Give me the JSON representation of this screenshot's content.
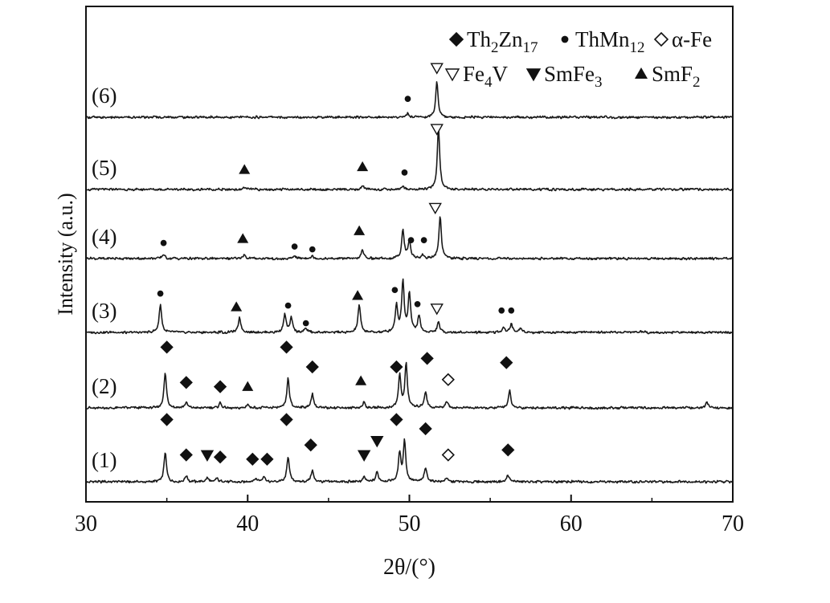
{
  "chart_data": {
    "type": "line",
    "title": "",
    "xlabel": "2θ/(°)",
    "ylabel": "Intensity (a.u.)",
    "xlim": [
      30,
      70
    ],
    "xticks": [
      30,
      40,
      50,
      60,
      70
    ],
    "grid": false,
    "legend": {
      "placement": "top-right",
      "entries": [
        {
          "symbol": "diamond-filled",
          "label": "Th2Zn17"
        },
        {
          "symbol": "circle-filled",
          "label": "ThMn12"
        },
        {
          "symbol": "diamond-open",
          "label": "α-Fe"
        },
        {
          "symbol": "triangle-down-open",
          "label": "Fe4V"
        },
        {
          "symbol": "triangle-down-filled",
          "label": "SmFe3"
        },
        {
          "symbol": "triangle-up-filled",
          "label": "SmF2"
        }
      ]
    },
    "series": [
      {
        "name": "(1)",
        "peaks": [
          {
            "x": 34.9,
            "h": 0.42
          },
          {
            "x": 36.2,
            "h": 0.08
          },
          {
            "x": 37.5,
            "h": 0.06
          },
          {
            "x": 38.1,
            "h": 0.05
          },
          {
            "x": 40.5,
            "h": 0.05
          },
          {
            "x": 41.0,
            "h": 0.07
          },
          {
            "x": 42.5,
            "h": 0.36
          },
          {
            "x": 44.0,
            "h": 0.16
          },
          {
            "x": 47.2,
            "h": 0.06
          },
          {
            "x": 48.0,
            "h": 0.14
          },
          {
            "x": 49.4,
            "h": 0.4
          },
          {
            "x": 49.7,
            "h": 0.58
          },
          {
            "x": 51.0,
            "h": 0.2
          },
          {
            "x": 52.3,
            "h": 0.06
          },
          {
            "x": 56.1,
            "h": 0.1
          }
        ],
        "markers": [
          {
            "x": 35.0,
            "sym": "diamond-filled",
            "h": 0.88
          },
          {
            "x": 36.2,
            "sym": "diamond-filled",
            "h": 0.38
          },
          {
            "x": 37.5,
            "sym": "triangle-down-filled",
            "h": 0.38
          },
          {
            "x": 38.3,
            "sym": "diamond-filled",
            "h": 0.35
          },
          {
            "x": 40.3,
            "sym": "diamond-filled",
            "h": 0.32
          },
          {
            "x": 41.2,
            "sym": "diamond-filled",
            "h": 0.32
          },
          {
            "x": 42.4,
            "sym": "diamond-filled",
            "h": 0.88
          },
          {
            "x": 43.9,
            "sym": "diamond-filled",
            "h": 0.52
          },
          {
            "x": 47.2,
            "sym": "triangle-down-filled",
            "h": 0.38
          },
          {
            "x": 48.0,
            "sym": "triangle-down-filled",
            "h": 0.58
          },
          {
            "x": 49.2,
            "sym": "diamond-filled",
            "h": 0.88
          },
          {
            "x": 51.0,
            "sym": "diamond-filled",
            "h": 0.75
          },
          {
            "x": 52.4,
            "sym": "diamond-open",
            "h": 0.38
          },
          {
            "x": 56.1,
            "sym": "diamond-filled",
            "h": 0.45
          }
        ]
      },
      {
        "name": "(2)",
        "peaks": [
          {
            "x": 34.9,
            "h": 0.5
          },
          {
            "x": 36.2,
            "h": 0.07
          },
          {
            "x": 38.3,
            "h": 0.07
          },
          {
            "x": 40.0,
            "h": 0.05
          },
          {
            "x": 42.5,
            "h": 0.42
          },
          {
            "x": 44.0,
            "h": 0.2
          },
          {
            "x": 47.2,
            "h": 0.08
          },
          {
            "x": 49.4,
            "h": 0.46
          },
          {
            "x": 49.8,
            "h": 0.62
          },
          {
            "x": 51.0,
            "h": 0.24
          },
          {
            "x": 52.3,
            "h": 0.1
          },
          {
            "x": 56.2,
            "h": 0.24
          },
          {
            "x": 68.4,
            "h": 0.07
          }
        ],
        "markers": [
          {
            "x": 35.0,
            "sym": "diamond-filled",
            "h": 0.86
          },
          {
            "x": 36.2,
            "sym": "diamond-filled",
            "h": 0.36
          },
          {
            "x": 38.3,
            "sym": "diamond-filled",
            "h": 0.3
          },
          {
            "x": 40.0,
            "sym": "triangle-up-filled",
            "h": 0.3
          },
          {
            "x": 42.4,
            "sym": "diamond-filled",
            "h": 0.86
          },
          {
            "x": 44.0,
            "sym": "diamond-filled",
            "h": 0.58
          },
          {
            "x": 47.0,
            "sym": "triangle-up-filled",
            "h": 0.38
          },
          {
            "x": 49.2,
            "sym": "diamond-filled",
            "h": 0.58
          },
          {
            "x": 51.1,
            "sym": "diamond-filled",
            "h": 0.7
          },
          {
            "x": 52.4,
            "sym": "diamond-open",
            "h": 0.4
          },
          {
            "x": 56.0,
            "sym": "diamond-filled",
            "h": 0.64
          }
        ]
      },
      {
        "name": "(3)",
        "peaks": [
          {
            "x": 34.6,
            "h": 0.4
          },
          {
            "x": 39.5,
            "h": 0.22
          },
          {
            "x": 42.3,
            "h": 0.26
          },
          {
            "x": 42.7,
            "h": 0.2
          },
          {
            "x": 43.6,
            "h": 0.06
          },
          {
            "x": 46.9,
            "h": 0.4
          },
          {
            "x": 49.2,
            "h": 0.38
          },
          {
            "x": 49.6,
            "h": 0.72
          },
          {
            "x": 50.0,
            "h": 0.55
          },
          {
            "x": 50.6,
            "h": 0.24
          },
          {
            "x": 51.8,
            "h": 0.14
          },
          {
            "x": 55.8,
            "h": 0.08
          },
          {
            "x": 56.3,
            "h": 0.12
          },
          {
            "x": 56.9,
            "h": 0.06
          },
          {
            "x": 64.3,
            "h": 0.02
          }
        ],
        "markers": [
          {
            "x": 34.6,
            "sym": "circle-filled",
            "h": 0.55
          },
          {
            "x": 39.3,
            "sym": "triangle-up-filled",
            "h": 0.36
          },
          {
            "x": 42.5,
            "sym": "circle-filled",
            "h": 0.38
          },
          {
            "x": 43.6,
            "sym": "circle-filled",
            "h": 0.13
          },
          {
            "x": 46.8,
            "sym": "triangle-up-filled",
            "h": 0.52
          },
          {
            "x": 49.1,
            "sym": "circle-filled",
            "h": 0.6
          },
          {
            "x": 50.5,
            "sym": "circle-filled",
            "h": 0.4
          },
          {
            "x": 51.7,
            "sym": "triangle-down-open",
            "h": 0.34
          },
          {
            "x": 55.7,
            "sym": "circle-filled",
            "h": 0.31
          },
          {
            "x": 56.3,
            "sym": "circle-filled",
            "h": 0.31
          }
        ]
      },
      {
        "name": "(4)",
        "peaks": [
          {
            "x": 34.8,
            "h": 0.06
          },
          {
            "x": 39.8,
            "h": 0.06
          },
          {
            "x": 42.9,
            "h": 0.04
          },
          {
            "x": 44.0,
            "h": 0.03
          },
          {
            "x": 47.1,
            "h": 0.12
          },
          {
            "x": 49.6,
            "h": 0.4
          },
          {
            "x": 50.0,
            "h": 0.26
          },
          {
            "x": 50.8,
            "h": 0.05
          },
          {
            "x": 51.9,
            "h": 0.6
          }
        ],
        "markers": [
          {
            "x": 34.8,
            "sym": "circle-filled",
            "h": 0.22
          },
          {
            "x": 39.7,
            "sym": "triangle-up-filled",
            "h": 0.28
          },
          {
            "x": 42.9,
            "sym": "circle-filled",
            "h": 0.17
          },
          {
            "x": 44.0,
            "sym": "circle-filled",
            "h": 0.13
          },
          {
            "x": 46.9,
            "sym": "triangle-up-filled",
            "h": 0.39
          },
          {
            "x": 50.1,
            "sym": "circle-filled",
            "h": 0.26
          },
          {
            "x": 50.9,
            "sym": "circle-filled",
            "h": 0.26
          },
          {
            "x": 51.6,
            "sym": "triangle-down-open",
            "h": 0.72
          }
        ]
      },
      {
        "name": "(5)",
        "peaks": [
          {
            "x": 39.8,
            "h": 0.03
          },
          {
            "x": 47.1,
            "h": 0.05
          },
          {
            "x": 49.6,
            "h": 0.04
          },
          {
            "x": 51.8,
            "h": 0.88
          }
        ],
        "markers": [
          {
            "x": 39.8,
            "sym": "triangle-up-filled",
            "h": 0.28
          },
          {
            "x": 47.1,
            "sym": "triangle-up-filled",
            "h": 0.32
          },
          {
            "x": 49.7,
            "sym": "circle-filled",
            "h": 0.24
          },
          {
            "x": 51.7,
            "sym": "triangle-down-open",
            "h": 0.86
          }
        ]
      },
      {
        "name": "(6)",
        "peaks": [
          {
            "x": 49.9,
            "h": 0.06
          },
          {
            "x": 51.7,
            "h": 0.5
          }
        ],
        "markers": [
          {
            "x": 49.9,
            "sym": "circle-filled",
            "h": 0.26
          },
          {
            "x": 51.7,
            "sym": "triangle-down-open",
            "h": 0.7
          }
        ]
      }
    ]
  }
}
